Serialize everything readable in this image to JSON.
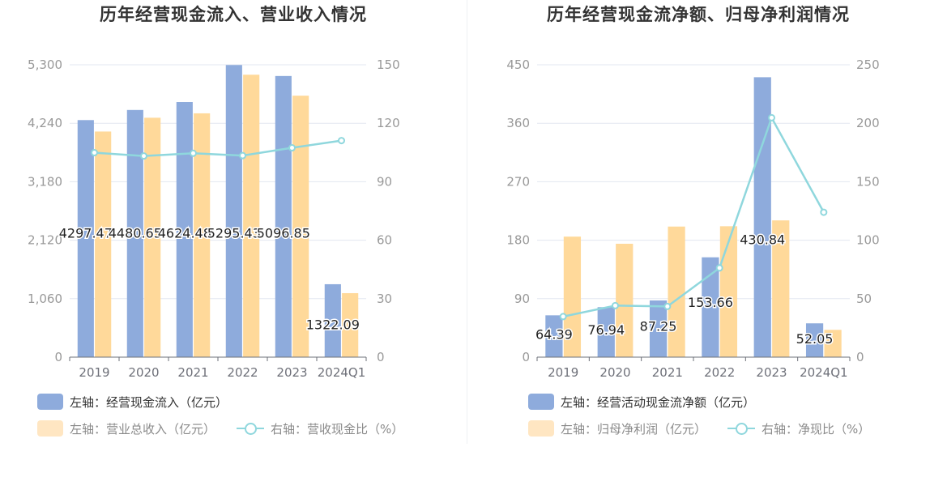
{
  "colors": {
    "bar_primary": "#8eabdc",
    "bar_secondary": "#ffd99a",
    "line": "#8fd7dd",
    "grid": "#e3e7f0",
    "axis_text": "#999999",
    "title_text": "#333333"
  },
  "chart_data": [
    {
      "type": "bar",
      "title": "历年经营现金流入、营业收入情况",
      "categories": [
        "2019",
        "2020",
        "2021",
        "2022",
        "2023",
        "2024Q1"
      ],
      "left_axis": {
        "ylim": [
          0,
          5300
        ],
        "ticks": [
          "0",
          "1,060",
          "2,120",
          "3,180",
          "4,240",
          "5,300"
        ]
      },
      "right_axis": {
        "ylim": [
          0,
          150
        ],
        "ticks": [
          "0",
          "30",
          "60",
          "90",
          "120",
          "150"
        ]
      },
      "series": [
        {
          "name": "左轴：经营现金流入（亿元）",
          "axis": "left",
          "kind": "bar",
          "values": [
            4297.47,
            4480.65,
            4624.48,
            5295.43,
            5096.85,
            1322.09
          ],
          "labels": [
            "4297.47",
            "4480.65",
            "4624.48",
            "5295.43",
            "5096.85",
            "1322.09"
          ]
        },
        {
          "name": "左轴：营业总收入（亿元）",
          "axis": "left",
          "kind": "bar",
          "values": [
            4090,
            4340,
            4420,
            5120,
            4740,
            1160
          ]
        },
        {
          "name": "右轴：营收现金比（%）",
          "axis": "right",
          "kind": "line",
          "values": [
            104.9,
            103.2,
            104.6,
            103.4,
            107.4,
            111.1
          ]
        }
      ],
      "legend": {
        "row1": [
          {
            "label": "左轴：经营现金流入（亿元）",
            "swatch": "bar_primary"
          }
        ],
        "row2": [
          {
            "label": "左轴：营业总收入（亿元）",
            "swatch": "bar_secondary"
          },
          {
            "label": "右轴：营收现金比（%）",
            "swatch": "line"
          }
        ]
      },
      "legend_placement": "bottom",
      "grid": true
    },
    {
      "type": "bar",
      "title": "历年经营现金流净额、归母净利润情况",
      "categories": [
        "2019",
        "2020",
        "2021",
        "2022",
        "2023",
        "2024Q1"
      ],
      "left_axis": {
        "ylim": [
          0,
          450
        ],
        "ticks": [
          "0",
          "90",
          "180",
          "270",
          "360",
          "450"
        ]
      },
      "right_axis": {
        "ylim": [
          0,
          250
        ],
        "ticks": [
          "0",
          "50",
          "100",
          "150",
          "200",
          "250"
        ]
      },
      "series": [
        {
          "name": "左轴：经营活动现金流净额（亿元）",
          "axis": "left",
          "kind": "bar",
          "values": [
            64.39,
            76.94,
            87.25,
            153.66,
            430.84,
            52.05
          ],
          "labels": [
            "64.39",
            "76.94",
            "87.25",
            "153.66",
            "430.84",
            "52.05"
          ]
        },
        {
          "name": "左轴：归母净利润（亿元）",
          "axis": "left",
          "kind": "bar",
          "values": [
            185.5,
            174.5,
            201.0,
            201.5,
            210.5,
            42.0
          ]
        },
        {
          "name": "右轴：净现比（%）",
          "axis": "right",
          "kind": "line",
          "values": [
            34.7,
            44.1,
            43.4,
            76.3,
            204.7,
            123.9
          ]
        }
      ],
      "legend": {
        "row1": [
          {
            "label": "左轴：经营活动现金流净额（亿元）",
            "swatch": "bar_primary"
          }
        ],
        "row2": [
          {
            "label": "左轴：归母净利润（亿元）",
            "swatch": "bar_secondary"
          },
          {
            "label": "右轴：净现比（%）",
            "swatch": "line"
          }
        ]
      },
      "legend_placement": "bottom",
      "grid": true
    }
  ]
}
